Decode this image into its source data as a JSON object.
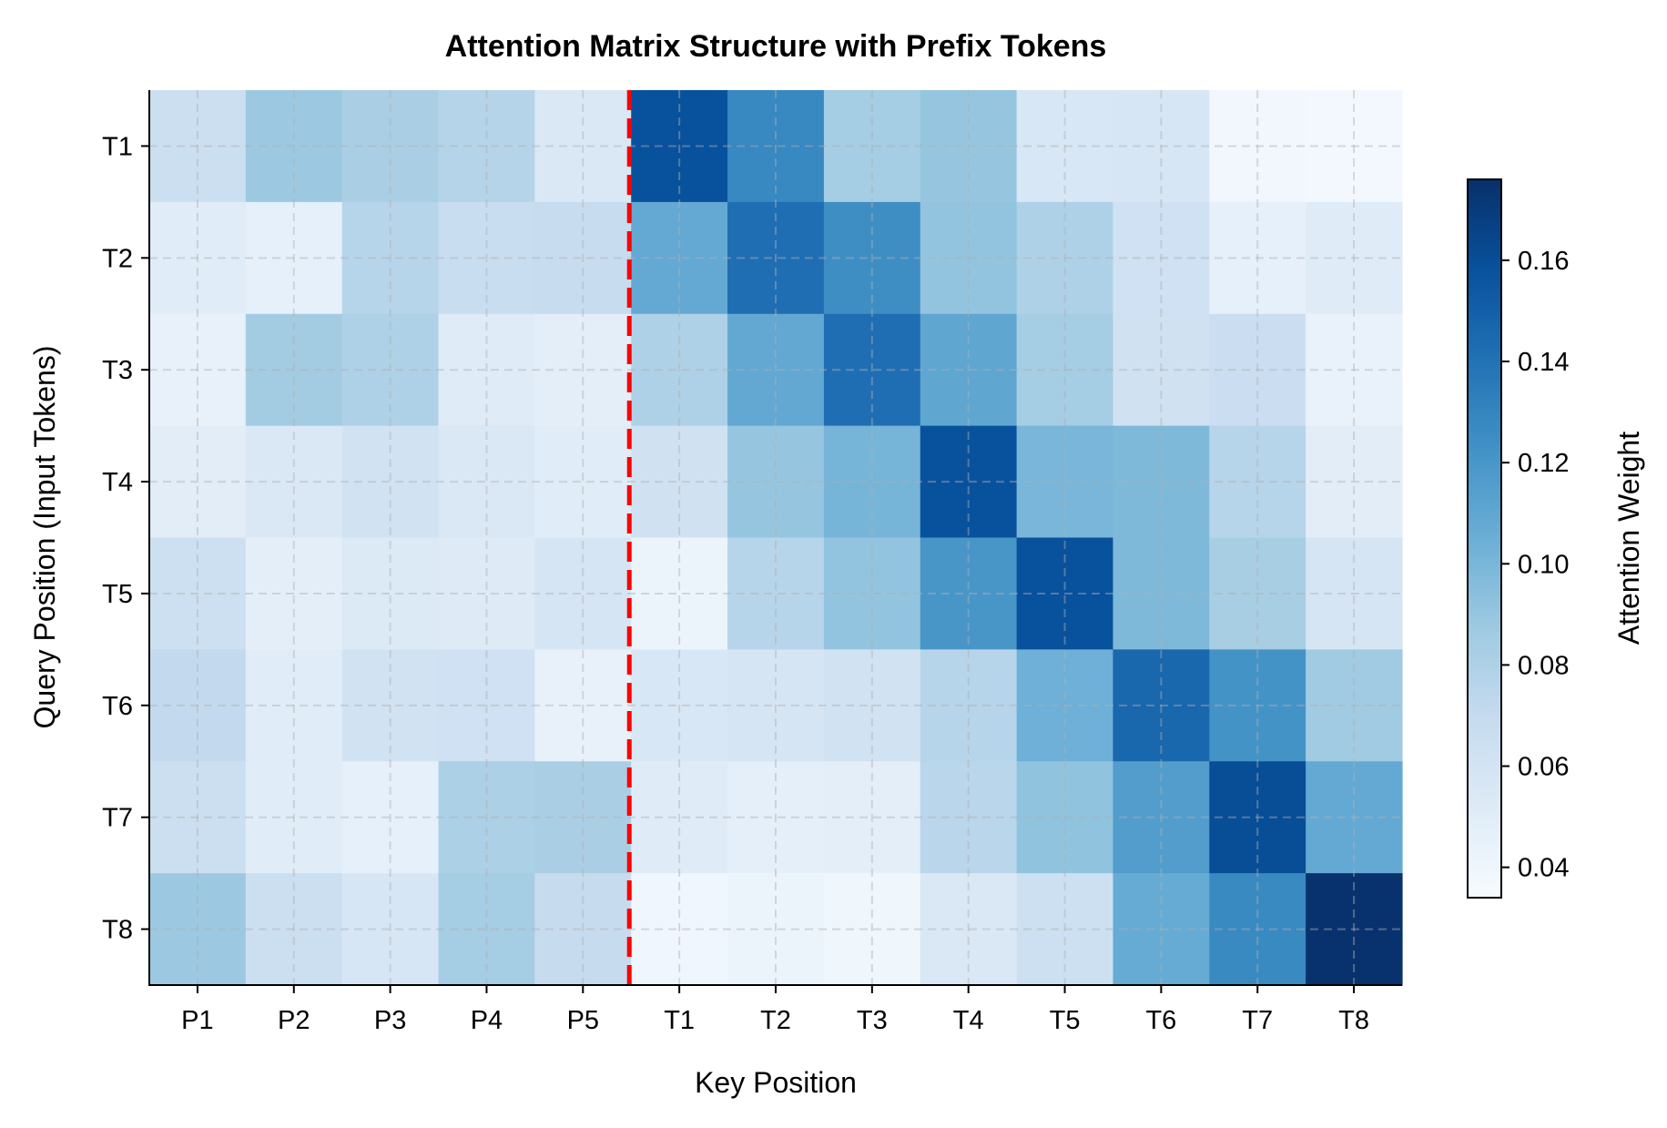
{
  "chart_data": {
    "type": "heatmap",
    "title": "Attention Matrix Structure with Prefix Tokens",
    "xlabel": "Key Position",
    "ylabel": "Query Position (Input Tokens)",
    "x_categories": [
      "P1",
      "P2",
      "P3",
      "P4",
      "P5",
      "T1",
      "T2",
      "T3",
      "T4",
      "T5",
      "T6",
      "T7",
      "T8"
    ],
    "y_categories": [
      "T1",
      "T2",
      "T3",
      "T4",
      "T5",
      "T6",
      "T7",
      "T8"
    ],
    "values": [
      [
        0.065,
        0.088,
        0.082,
        0.077,
        0.055,
        0.158,
        0.128,
        0.084,
        0.09,
        0.056,
        0.057,
        0.038,
        0.037
      ],
      [
        0.05,
        0.046,
        0.076,
        0.067,
        0.068,
        0.108,
        0.142,
        0.125,
        0.091,
        0.08,
        0.063,
        0.046,
        0.051
      ],
      [
        0.045,
        0.085,
        0.08,
        0.051,
        0.048,
        0.08,
        0.109,
        0.142,
        0.11,
        0.084,
        0.062,
        0.066,
        0.044
      ],
      [
        0.049,
        0.055,
        0.061,
        0.055,
        0.05,
        0.062,
        0.09,
        0.101,
        0.158,
        0.1,
        0.098,
        0.076,
        0.049
      ],
      [
        0.064,
        0.048,
        0.053,
        0.052,
        0.058,
        0.042,
        0.076,
        0.091,
        0.12,
        0.158,
        0.098,
        0.083,
        0.058
      ],
      [
        0.071,
        0.05,
        0.061,
        0.063,
        0.045,
        0.056,
        0.058,
        0.061,
        0.076,
        0.104,
        0.146,
        0.122,
        0.086
      ],
      [
        0.065,
        0.05,
        0.046,
        0.081,
        0.082,
        0.051,
        0.047,
        0.048,
        0.075,
        0.092,
        0.116,
        0.16,
        0.108
      ],
      [
        0.088,
        0.065,
        0.057,
        0.084,
        0.069,
        0.039,
        0.042,
        0.04,
        0.055,
        0.064,
        0.107,
        0.127,
        0.175
      ]
    ],
    "colormap": "Blues",
    "value_range": [
      0.034,
      0.176
    ],
    "colorbar": {
      "label": "Attention Weight",
      "ticks": [
        0.04,
        0.06,
        0.08,
        0.1,
        0.12,
        0.14,
        0.16
      ],
      "tick_labels": [
        "0.04",
        "0.06",
        "0.08",
        "0.10",
        "0.12",
        "0.14",
        "0.16"
      ]
    },
    "separator": {
      "between": [
        "P5",
        "T1"
      ],
      "color": "#ff0000",
      "style": "dashed"
    },
    "grid": true
  }
}
